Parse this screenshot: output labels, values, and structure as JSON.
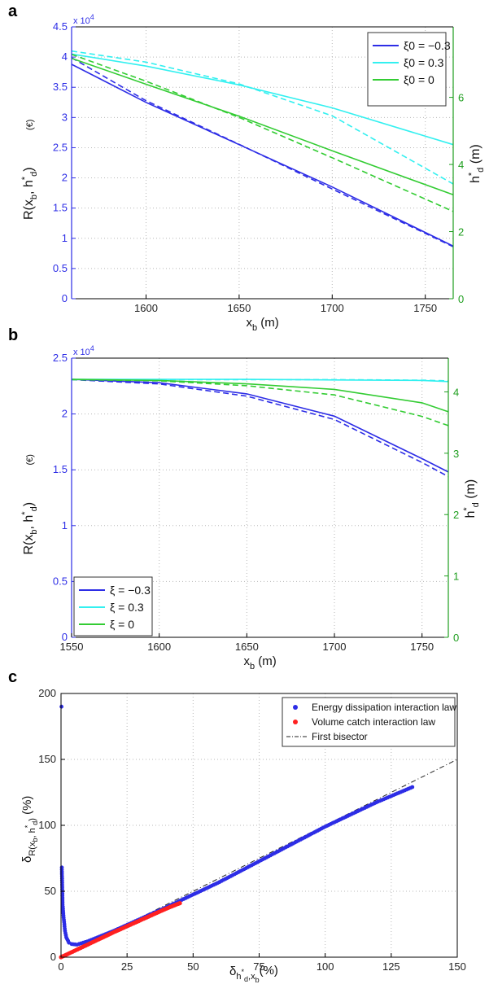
{
  "colors": {
    "blue": "#2d2de6",
    "cyan": "#33f0f0",
    "green": "#33cc33",
    "greenAxis": "#1e9e1e",
    "red": "#ff2020",
    "grid": "#b8b8b8",
    "axis": "#000000"
  },
  "chart_data": [
    {
      "type": "line",
      "panel_label": "a",
      "xlabel": "x_b (m)",
      "ylabel": "R(x_b, h*_d)",
      "ylabel_unit": "(€)",
      "y2label": "h*_d (m)",
      "xlim": [
        1560,
        1765
      ],
      "ylim": [
        0,
        45000
      ],
      "y2lim": [
        0,
        8.1
      ],
      "xticks": [
        1600,
        1650,
        1700,
        1750
      ],
      "yticks": [
        0,
        0.5,
        1,
        1.5,
        2,
        2.5,
        3,
        3.5,
        4,
        4.5
      ],
      "y2ticks": [
        0,
        2,
        4,
        6
      ],
      "y_multiplier": "x 10^4",
      "grid": true,
      "legend_position": "top-right",
      "legend": [
        {
          "label": "ξ0 = −0.3",
          "color": "blue"
        },
        {
          "label": "ξ0 = 0.3",
          "color": "cyan"
        },
        {
          "label": "ξ0 = 0",
          "color": "green"
        }
      ],
      "x": [
        1560,
        1600,
        1650,
        1700,
        1765
      ],
      "series": [
        {
          "name": "ξ0 = −0.3",
          "axis": "left",
          "color": "blue",
          "dash": "solid",
          "values": [
            38800,
            32500,
            25500,
            18500,
            8700
          ]
        },
        {
          "axis": "right",
          "color": "blue",
          "dash": "dashed",
          "values": [
            7.18,
            5.9,
            4.6,
            3.27,
            1.55
          ]
        },
        {
          "name": "ξ0 = 0.3",
          "axis": "left",
          "color": "cyan",
          "dash": "solid",
          "values": [
            40500,
            38500,
            35400,
            31600,
            25500
          ]
        },
        {
          "axis": "right",
          "color": "cyan",
          "dash": "dashed",
          "values": [
            7.38,
            7.05,
            6.4,
            5.45,
            3.42
          ]
        },
        {
          "name": "ξ0 = 0",
          "axis": "left",
          "color": "green",
          "dash": "solid",
          "values": [
            39800,
            35500,
            30200,
            24500,
            17200
          ]
        },
        {
          "axis": "right",
          "color": "green",
          "dash": "dashed",
          "values": [
            7.28,
            6.48,
            5.4,
            4.2,
            2.6
          ]
        }
      ]
    },
    {
      "type": "line",
      "panel_label": "b",
      "xlabel": "x_b (m)",
      "ylabel": "R(x_b, h*_d)",
      "ylabel_unit": "(€)",
      "y2label": "h*_d (m)",
      "xlim": [
        1550,
        1765
      ],
      "ylim": [
        0,
        25000
      ],
      "y2lim": [
        0,
        4.55
      ],
      "xticks": [
        1550,
        1600,
        1650,
        1700,
        1750
      ],
      "yticks": [
        0,
        0.5,
        1,
        1.5,
        2,
        2.5
      ],
      "y2ticks": [
        0,
        1,
        2,
        3,
        4
      ],
      "y_multiplier": "x 10^4",
      "grid": true,
      "legend_position": "bottom-left",
      "legend": [
        {
          "label": "ξ = −0.3",
          "color": "blue"
        },
        {
          "label": "ξ = 0.3",
          "color": "cyan"
        },
        {
          "label": "ξ = 0",
          "color": "green"
        }
      ],
      "x": [
        1550,
        1600,
        1650,
        1700,
        1750,
        1765
      ],
      "series": [
        {
          "name": "ξ = −0.3",
          "axis": "left",
          "color": "blue",
          "dash": "solid",
          "values": [
            23100,
            22800,
            21800,
            19800,
            16000,
            14800
          ]
        },
        {
          "axis": "right",
          "color": "blue",
          "dash": "dashed",
          "values": [
            4.2,
            4.13,
            3.93,
            3.55,
            2.85,
            2.62
          ]
        },
        {
          "name": "ξ = 0.3",
          "axis": "left",
          "color": "cyan",
          "dash": "solid",
          "values": [
            23100,
            23100,
            23100,
            23050,
            23000,
            22900
          ]
        },
        {
          "axis": "right",
          "color": "cyan",
          "dash": "dashed",
          "values": [
            4.2,
            4.2,
            4.2,
            4.2,
            4.19,
            4.18
          ]
        },
        {
          "name": "ξ = 0",
          "axis": "left",
          "color": "green",
          "dash": "solid",
          "values": [
            23100,
            23000,
            22700,
            22200,
            21000,
            20200
          ]
        },
        {
          "axis": "right",
          "color": "green",
          "dash": "dashed",
          "values": [
            4.2,
            4.18,
            4.1,
            3.95,
            3.6,
            3.45
          ]
        }
      ]
    },
    {
      "type": "scatter",
      "panel_label": "c",
      "xlabel": "δ h*_d, x_b (%)",
      "ylabel": "δ R(x_b, h*_d) (%)",
      "xlim": [
        0,
        150
      ],
      "ylim": [
        0,
        200
      ],
      "xticks": [
        0,
        25,
        50,
        75,
        100,
        125,
        150
      ],
      "yticks": [
        0,
        50,
        100,
        150,
        200
      ],
      "grid": true,
      "legend_position": "top-right",
      "series": [
        {
          "name": "Energy dissipation interaction law",
          "color": "blue",
          "style": "dots",
          "points": [
            [
              0.2,
              190
            ],
            [
              0.3,
              68
            ],
            [
              0.6,
              40
            ],
            [
              1,
              30
            ],
            [
              1.5,
              20
            ],
            [
              2,
              15
            ],
            [
              3,
              11
            ],
            [
              4,
              10
            ],
            [
              6,
              9.5
            ],
            [
              10,
              12
            ],
            [
              20,
              20
            ],
            [
              40,
              38
            ],
            [
              60,
              57
            ],
            [
              80,
              78
            ],
            [
              100,
              99
            ],
            [
              120,
              118
            ],
            [
              133,
              129
            ]
          ]
        },
        {
          "name": "Volume catch interaction law",
          "color": "red",
          "style": "dots",
          "points": [
            [
              0,
              0
            ],
            [
              10,
              9.5
            ],
            [
              20,
              19
            ],
            [
              30,
              28
            ],
            [
              40,
              37
            ],
            [
              45,
              41
            ]
          ]
        },
        {
          "name": "First bisector",
          "color": "axis",
          "style": "dash-dot",
          "points": [
            [
              0,
              0
            ],
            [
              150,
              150
            ]
          ]
        }
      ]
    }
  ]
}
